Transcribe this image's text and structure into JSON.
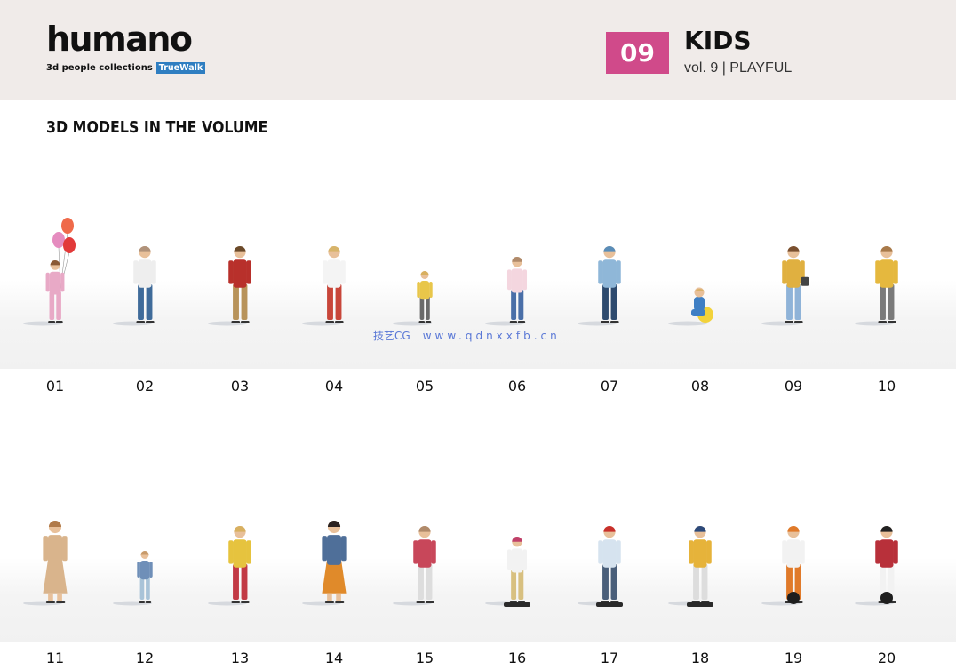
{
  "brand": {
    "logo_text": "humano",
    "tagline": "3d people collections",
    "badge": "TrueWalk"
  },
  "volume": {
    "number": "09",
    "title": "KIDS",
    "subtitle": "vol. 9 | PLAYFUL"
  },
  "section_title": "3D MODELS IN THE VOLUME",
  "watermark": {
    "cn": "技艺CG",
    "url": "www.qdnxxfb.cn"
  },
  "models": [
    {
      "number": "01",
      "kind": "girl-balloons",
      "shirt": "#e8a9c6",
      "pants": "#e8a9c6",
      "hair": "#8a5a35",
      "extra": "balloons"
    },
    {
      "number": "02",
      "kind": "standing",
      "shirt": "#eeeeee",
      "pants": "#3f6b9a",
      "hair": "#b0927a",
      "extra": ""
    },
    {
      "number": "03",
      "kind": "standing",
      "shirt": "#b8302b",
      "pants": "#b8935a",
      "hair": "#6b4a2a",
      "extra": ""
    },
    {
      "number": "04",
      "kind": "standing",
      "shirt": "#f4f4f4",
      "pants": "#c8463a",
      "hair": "#d7b46a",
      "extra": ""
    },
    {
      "number": "05",
      "kind": "small",
      "shirt": "#e8c64a",
      "pants": "#6a6a6a",
      "hair": "#d8b060",
      "extra": ""
    },
    {
      "number": "06",
      "kind": "girl",
      "shirt": "#f4d6df",
      "pants": "#4a6fa8",
      "hair": "#b08a6a",
      "extra": ""
    },
    {
      "number": "07",
      "kind": "standing",
      "shirt": "#8fb7d8",
      "pants": "#2d4a6e",
      "hair": "#5a8db8",
      "extra": "cap"
    },
    {
      "number": "08",
      "kind": "sitting",
      "shirt": "#3f7fc4",
      "pants": "#3f7fc4",
      "hair": "#d9b06a",
      "extra": "ball"
    },
    {
      "number": "09",
      "kind": "standing",
      "shirt": "#e0b040",
      "pants": "#8fb3d8",
      "hair": "#7a5030",
      "extra": "bag"
    },
    {
      "number": "10",
      "kind": "standing",
      "shirt": "#e5b83e",
      "pants": "#7a7a7a",
      "hair": "#a87a4a",
      "extra": ""
    },
    {
      "number": "11",
      "kind": "woman",
      "shirt": "#d9b48c",
      "pants": "#d9b48c",
      "hair": "#b07a4a",
      "extra": "dress"
    },
    {
      "number": "12",
      "kind": "small",
      "shirt": "#6f8fb8",
      "pants": "#a9c3d8",
      "hair": "#c79a6a",
      "extra": ""
    },
    {
      "number": "13",
      "kind": "standing",
      "shirt": "#e6c33e",
      "pants": "#c23a45",
      "hair": "#d8b060",
      "extra": ""
    },
    {
      "number": "14",
      "kind": "woman",
      "shirt": "#4f6f99",
      "pants": "#e08a2a",
      "hair": "#2a2220",
      "extra": "dress"
    },
    {
      "number": "15",
      "kind": "standing",
      "shirt": "#c8475a",
      "pants": "#dddddd",
      "hair": "#b08a6a",
      "extra": ""
    },
    {
      "number": "16",
      "kind": "girl",
      "shirt": "#f2f2f2",
      "pants": "#d8c080",
      "hair": "#c0406a",
      "extra": "board"
    },
    {
      "number": "17",
      "kind": "standing",
      "shirt": "#d6e3ef",
      "pants": "#4a5f7a",
      "hair": "#c8302b",
      "extra": "board"
    },
    {
      "number": "18",
      "kind": "standing",
      "shirt": "#e6b33a",
      "pants": "#dddddd",
      "hair": "#2d4a7a",
      "extra": "board"
    },
    {
      "number": "19",
      "kind": "standing",
      "shirt": "#f2f2f2",
      "pants": "#e07a2a",
      "hair": "#e07a2a",
      "extra": "wheel"
    },
    {
      "number": "20",
      "kind": "standing",
      "shirt": "#b8303a",
      "pants": "#f2f2f2",
      "hair": "#222222",
      "extra": "wheel"
    }
  ]
}
